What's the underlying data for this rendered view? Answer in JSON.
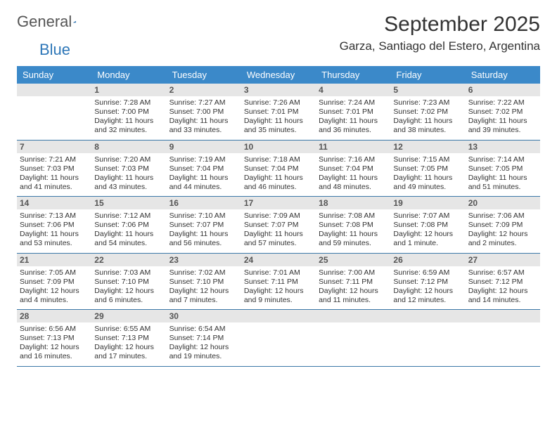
{
  "brand": {
    "part1": "General",
    "part2": "Blue"
  },
  "title": "September 2025",
  "location": "Garza, Santiago del Estero, Argentina",
  "colors": {
    "header_bg": "#3b89c9",
    "header_fg": "#ffffff",
    "daynum_bg": "#e6e6e6",
    "daynum_fg": "#555555",
    "rule": "#3b78a8",
    "brand_accent": "#2e77b8"
  },
  "days_of_week": [
    "Sunday",
    "Monday",
    "Tuesday",
    "Wednesday",
    "Thursday",
    "Friday",
    "Saturday"
  ],
  "weeks": [
    [
      null,
      {
        "n": "1",
        "sunrise": "7:28 AM",
        "sunset": "7:00 PM",
        "dl1": "Daylight: 11 hours",
        "dl2": "and 32 minutes."
      },
      {
        "n": "2",
        "sunrise": "7:27 AM",
        "sunset": "7:00 PM",
        "dl1": "Daylight: 11 hours",
        "dl2": "and 33 minutes."
      },
      {
        "n": "3",
        "sunrise": "7:26 AM",
        "sunset": "7:01 PM",
        "dl1": "Daylight: 11 hours",
        "dl2": "and 35 minutes."
      },
      {
        "n": "4",
        "sunrise": "7:24 AM",
        "sunset": "7:01 PM",
        "dl1": "Daylight: 11 hours",
        "dl2": "and 36 minutes."
      },
      {
        "n": "5",
        "sunrise": "7:23 AM",
        "sunset": "7:02 PM",
        "dl1": "Daylight: 11 hours",
        "dl2": "and 38 minutes."
      },
      {
        "n": "6",
        "sunrise": "7:22 AM",
        "sunset": "7:02 PM",
        "dl1": "Daylight: 11 hours",
        "dl2": "and 39 minutes."
      }
    ],
    [
      {
        "n": "7",
        "sunrise": "7:21 AM",
        "sunset": "7:03 PM",
        "dl1": "Daylight: 11 hours",
        "dl2": "and 41 minutes."
      },
      {
        "n": "8",
        "sunrise": "7:20 AM",
        "sunset": "7:03 PM",
        "dl1": "Daylight: 11 hours",
        "dl2": "and 43 minutes."
      },
      {
        "n": "9",
        "sunrise": "7:19 AM",
        "sunset": "7:04 PM",
        "dl1": "Daylight: 11 hours",
        "dl2": "and 44 minutes."
      },
      {
        "n": "10",
        "sunrise": "7:18 AM",
        "sunset": "7:04 PM",
        "dl1": "Daylight: 11 hours",
        "dl2": "and 46 minutes."
      },
      {
        "n": "11",
        "sunrise": "7:16 AM",
        "sunset": "7:04 PM",
        "dl1": "Daylight: 11 hours",
        "dl2": "and 48 minutes."
      },
      {
        "n": "12",
        "sunrise": "7:15 AM",
        "sunset": "7:05 PM",
        "dl1": "Daylight: 11 hours",
        "dl2": "and 49 minutes."
      },
      {
        "n": "13",
        "sunrise": "7:14 AM",
        "sunset": "7:05 PM",
        "dl1": "Daylight: 11 hours",
        "dl2": "and 51 minutes."
      }
    ],
    [
      {
        "n": "14",
        "sunrise": "7:13 AM",
        "sunset": "7:06 PM",
        "dl1": "Daylight: 11 hours",
        "dl2": "and 53 minutes."
      },
      {
        "n": "15",
        "sunrise": "7:12 AM",
        "sunset": "7:06 PM",
        "dl1": "Daylight: 11 hours",
        "dl2": "and 54 minutes."
      },
      {
        "n": "16",
        "sunrise": "7:10 AM",
        "sunset": "7:07 PM",
        "dl1": "Daylight: 11 hours",
        "dl2": "and 56 minutes."
      },
      {
        "n": "17",
        "sunrise": "7:09 AM",
        "sunset": "7:07 PM",
        "dl1": "Daylight: 11 hours",
        "dl2": "and 57 minutes."
      },
      {
        "n": "18",
        "sunrise": "7:08 AM",
        "sunset": "7:08 PM",
        "dl1": "Daylight: 11 hours",
        "dl2": "and 59 minutes."
      },
      {
        "n": "19",
        "sunrise": "7:07 AM",
        "sunset": "7:08 PM",
        "dl1": "Daylight: 12 hours",
        "dl2": "and 1 minute."
      },
      {
        "n": "20",
        "sunrise": "7:06 AM",
        "sunset": "7:09 PM",
        "dl1": "Daylight: 12 hours",
        "dl2": "and 2 minutes."
      }
    ],
    [
      {
        "n": "21",
        "sunrise": "7:05 AM",
        "sunset": "7:09 PM",
        "dl1": "Daylight: 12 hours",
        "dl2": "and 4 minutes."
      },
      {
        "n": "22",
        "sunrise": "7:03 AM",
        "sunset": "7:10 PM",
        "dl1": "Daylight: 12 hours",
        "dl2": "and 6 minutes."
      },
      {
        "n": "23",
        "sunrise": "7:02 AM",
        "sunset": "7:10 PM",
        "dl1": "Daylight: 12 hours",
        "dl2": "and 7 minutes."
      },
      {
        "n": "24",
        "sunrise": "7:01 AM",
        "sunset": "7:11 PM",
        "dl1": "Daylight: 12 hours",
        "dl2": "and 9 minutes."
      },
      {
        "n": "25",
        "sunrise": "7:00 AM",
        "sunset": "7:11 PM",
        "dl1": "Daylight: 12 hours",
        "dl2": "and 11 minutes."
      },
      {
        "n": "26",
        "sunrise": "6:59 AM",
        "sunset": "7:12 PM",
        "dl1": "Daylight: 12 hours",
        "dl2": "and 12 minutes."
      },
      {
        "n": "27",
        "sunrise": "6:57 AM",
        "sunset": "7:12 PM",
        "dl1": "Daylight: 12 hours",
        "dl2": "and 14 minutes."
      }
    ],
    [
      {
        "n": "28",
        "sunrise": "6:56 AM",
        "sunset": "7:13 PM",
        "dl1": "Daylight: 12 hours",
        "dl2": "and 16 minutes."
      },
      {
        "n": "29",
        "sunrise": "6:55 AM",
        "sunset": "7:13 PM",
        "dl1": "Daylight: 12 hours",
        "dl2": "and 17 minutes."
      },
      {
        "n": "30",
        "sunrise": "6:54 AM",
        "sunset": "7:14 PM",
        "dl1": "Daylight: 12 hours",
        "dl2": "and 19 minutes."
      },
      null,
      null,
      null,
      null
    ]
  ]
}
